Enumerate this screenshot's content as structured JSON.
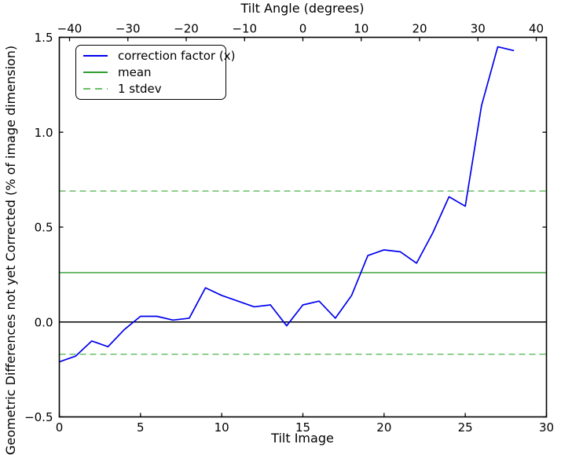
{
  "figure": {
    "background": "#ffffff",
    "frame_color": "#000000",
    "text_color": "#000000"
  },
  "chart_data": {
    "type": "line",
    "title": "Tilt Angle (degrees)",
    "xlabel": "Tilt Image",
    "ylabel": "Geometric Differences not yet Corrected (% of image dimension)",
    "xlim": [
      0,
      30
    ],
    "ylim": [
      -0.5,
      1.5
    ],
    "top_xlim": [
      -41.75,
      41.75
    ],
    "grid": false,
    "legend_position": "upper left",
    "x_ticks": [
      0,
      5,
      10,
      15,
      20,
      25,
      30
    ],
    "x_tick_labels": [
      "0",
      "5",
      "10",
      "15",
      "20",
      "25",
      "30"
    ],
    "y_ticks": [
      -0.5,
      0.0,
      0.5,
      1.0,
      1.5
    ],
    "y_tick_labels": [
      "−0.5",
      "0.0",
      "0.5",
      "1.0",
      "1.5"
    ],
    "top_ticks": [
      -40,
      -30,
      -20,
      -10,
      0,
      10,
      20,
      30,
      40
    ],
    "top_tick_labels": [
      "−40",
      "−30",
      "−20",
      "−10",
      "0",
      "10",
      "20",
      "30",
      "40"
    ],
    "series": [
      {
        "name": "correction factor (x)",
        "type": "line",
        "color": "#0000ee",
        "linestyle": "solid",
        "linewidth": 1.7,
        "x": [
          0,
          1,
          2,
          3,
          4,
          5,
          6,
          7,
          8,
          9,
          10,
          11,
          12,
          13,
          14,
          15,
          16,
          17,
          18,
          19,
          20,
          21,
          22,
          23,
          24,
          25,
          26,
          27,
          28
        ],
        "y": [
          -0.21,
          -0.18,
          -0.1,
          -0.13,
          -0.04,
          0.03,
          0.03,
          0.01,
          0.02,
          0.18,
          0.14,
          0.11,
          0.08,
          0.09,
          -0.02,
          0.09,
          0.11,
          0.02,
          0.14,
          0.35,
          0.38,
          0.37,
          0.31,
          0.47,
          0.66,
          0.61,
          1.14,
          1.45,
          1.43
        ]
      },
      {
        "name": "mean",
        "type": "hline",
        "color": "#2e9e2e",
        "linestyle": "solid",
        "linewidth": 1.3,
        "y": [
          0.26
        ]
      },
      {
        "name": "1 stdev",
        "type": "hline",
        "color": "#6abf6a",
        "linestyle": "dashed",
        "linewidth": 1.5,
        "y": [
          0.69,
          -0.17
        ]
      },
      {
        "name": "zero-line",
        "type": "hline",
        "color": "#000000",
        "linestyle": "solid",
        "linewidth": 1.6,
        "y": [
          0.0
        ]
      }
    ],
    "legend_entries": [
      "correction factor (x)",
      "mean",
      "1 stdev"
    ]
  }
}
